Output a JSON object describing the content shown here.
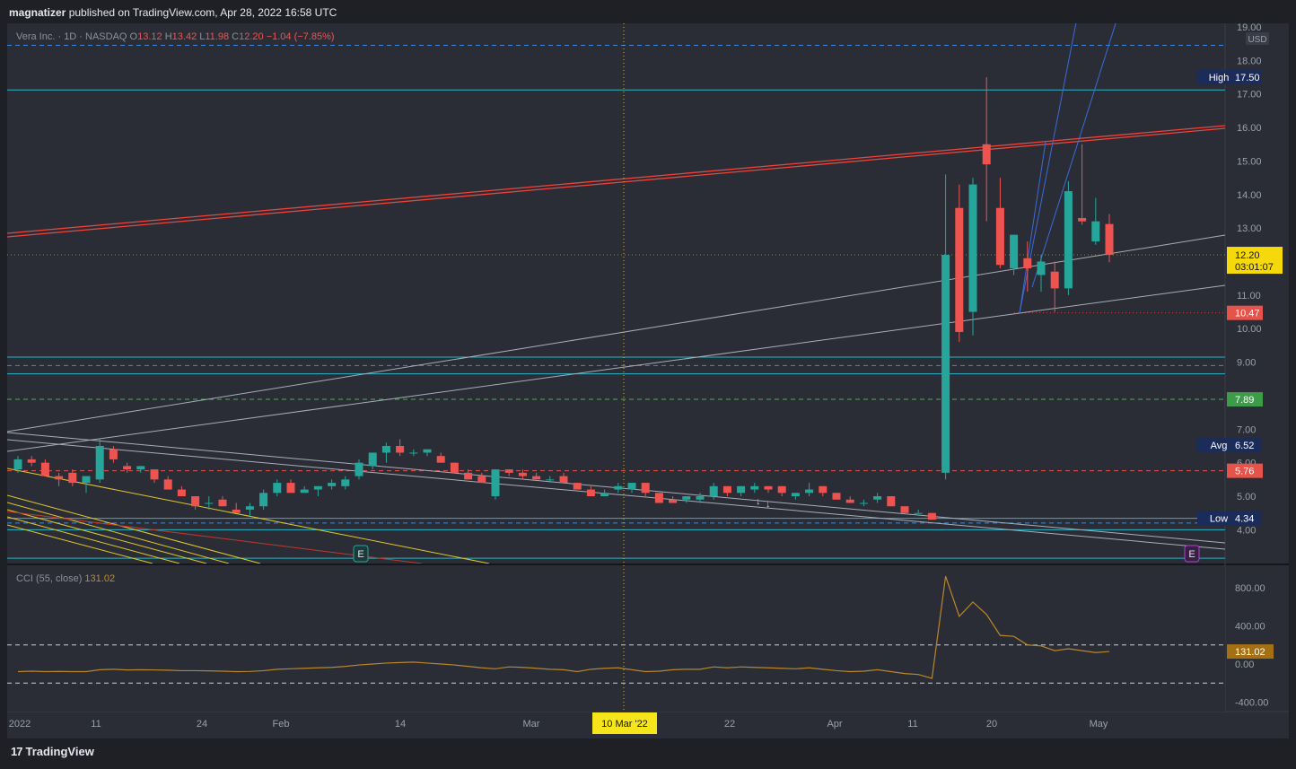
{
  "header": {
    "author": "magnatizer",
    "text": "published on TradingView.com, Apr 28, 2022 16:58 UTC"
  },
  "legend": {
    "symbol": "Vera Inc. · 1D · NASDAQ",
    "o_label": "O",
    "o": "13.12",
    "h_label": "H",
    "h": "13.42",
    "l_label": "L",
    "l": "11.98",
    "c_label": "C",
    "c": "12.20",
    "change": "−1.04 (−7.85%)"
  },
  "cci_legend": {
    "label": "CCI (55, close)",
    "value": "131.02"
  },
  "footer": {
    "brand": "TradingView"
  },
  "colors": {
    "up": "#26a69a",
    "down": "#ef5350",
    "red_line": "#f0433a",
    "blue_line": "#3b6bd6",
    "yellow_line": "#e3c82a",
    "teal_line": "#26c6da",
    "gray_line": "#a9adb8",
    "cci": "#b8862a"
  },
  "chart_data": {
    "type": "candlestick",
    "price_axis": {
      "ticks": [
        "19.00",
        "18.00",
        "17.00",
        "16.00",
        "15.00",
        "14.00",
        "13.00",
        "12.00",
        "11.00",
        "10.00",
        "9.00",
        "8.00",
        "7.00",
        "6.00",
        "5.00",
        "4.00"
      ],
      "currency": "USD",
      "range": [
        3.1,
        19.0
      ]
    },
    "time_axis": [
      "2022",
      "11",
      "24",
      "Feb",
      "14",
      "Mar",
      "22",
      "Apr",
      "11",
      "20",
      "May"
    ],
    "crosshair_date": "10 Mar '22",
    "price_labels": [
      {
        "text_left": "High",
        "value": "17.50",
        "kind": "navy"
      },
      {
        "value": "12.20",
        "sub": "03:01:07",
        "kind": "yellow"
      },
      {
        "value": "10.47",
        "kind": "red"
      },
      {
        "value": "7.89",
        "kind": "green"
      },
      {
        "text_left": "Avg",
        "value": "6.52",
        "kind": "navy"
      },
      {
        "value": "5.76",
        "kind": "red"
      },
      {
        "text_left": "Low",
        "value": "4.34",
        "kind": "navy"
      }
    ],
    "horizontal_levels": [
      {
        "price": 18.45,
        "style": "dashed",
        "color": "blue"
      },
      {
        "price": 17.12,
        "style": "solid",
        "color": "teal"
      },
      {
        "price": 9.15,
        "style": "solid",
        "color": "teal"
      },
      {
        "price": 8.9,
        "style": "dashed",
        "color": "blue"
      },
      {
        "price": 8.65,
        "style": "solid",
        "color": "teal"
      },
      {
        "price": 7.89,
        "style": "dashed",
        "color": "green"
      },
      {
        "price": 5.76,
        "style": "dashed",
        "color": "red"
      },
      {
        "price": 4.34,
        "style": "solid",
        "color": "teal"
      },
      {
        "price": 4.2,
        "style": "dashed",
        "color": "blue"
      },
      {
        "price": 4.0,
        "style": "solid",
        "color": "teal"
      },
      {
        "price": 3.15,
        "style": "solid",
        "color": "teal"
      }
    ],
    "candles": [
      {
        "o": 5.8,
        "h": 6.2,
        "l": 5.7,
        "c": 6.1
      },
      {
        "o": 6.1,
        "h": 6.2,
        "l": 5.9,
        "c": 6.0
      },
      {
        "o": 6.0,
        "h": 6.1,
        "l": 5.6,
        "c": 5.6
      },
      {
        "o": 5.6,
        "h": 5.7,
        "l": 5.3,
        "c": 5.5
      },
      {
        "o": 5.7,
        "h": 5.8,
        "l": 5.3,
        "c": 5.4
      },
      {
        "o": 5.4,
        "h": 5.6,
        "l": 5.1,
        "c": 5.6
      },
      {
        "o": 5.5,
        "h": 6.7,
        "l": 5.4,
        "c": 6.5
      },
      {
        "o": 6.4,
        "h": 6.5,
        "l": 6.0,
        "c": 6.1
      },
      {
        "o": 5.9,
        "h": 6.0,
        "l": 5.7,
        "c": 5.8
      },
      {
        "o": 5.8,
        "h": 5.9,
        "l": 5.7,
        "c": 5.9
      },
      {
        "o": 5.8,
        "h": 5.8,
        "l": 5.4,
        "c": 5.5
      },
      {
        "o": 5.5,
        "h": 5.6,
        "l": 5.2,
        "c": 5.2
      },
      {
        "o": 5.2,
        "h": 5.3,
        "l": 5.0,
        "c": 5.0
      },
      {
        "o": 5.0,
        "h": 5.0,
        "l": 4.6,
        "c": 4.7
      },
      {
        "o": 4.8,
        "h": 5.0,
        "l": 4.6,
        "c": 4.8
      },
      {
        "o": 4.9,
        "h": 5.0,
        "l": 4.7,
        "c": 4.7
      },
      {
        "o": 4.6,
        "h": 4.8,
        "l": 4.5,
        "c": 4.5
      },
      {
        "o": 4.6,
        "h": 4.8,
        "l": 4.4,
        "c": 4.7
      },
      {
        "o": 4.7,
        "h": 5.2,
        "l": 4.6,
        "c": 5.1
      },
      {
        "o": 5.1,
        "h": 5.5,
        "l": 5.0,
        "c": 5.4
      },
      {
        "o": 5.4,
        "h": 5.5,
        "l": 5.1,
        "c": 5.1
      },
      {
        "o": 5.1,
        "h": 5.3,
        "l": 5.1,
        "c": 5.2
      },
      {
        "o": 5.2,
        "h": 5.3,
        "l": 5.0,
        "c": 5.3
      },
      {
        "o": 5.3,
        "h": 5.5,
        "l": 5.2,
        "c": 5.4
      },
      {
        "o": 5.3,
        "h": 5.6,
        "l": 5.2,
        "c": 5.5
      },
      {
        "o": 5.6,
        "h": 6.1,
        "l": 5.5,
        "c": 6.0
      },
      {
        "o": 5.9,
        "h": 6.3,
        "l": 5.8,
        "c": 6.3
      },
      {
        "o": 6.3,
        "h": 6.6,
        "l": 6.0,
        "c": 6.5
      },
      {
        "o": 6.5,
        "h": 6.7,
        "l": 6.2,
        "c": 6.3
      },
      {
        "o": 6.3,
        "h": 6.4,
        "l": 6.2,
        "c": 6.3
      },
      {
        "o": 6.3,
        "h": 6.4,
        "l": 6.2,
        "c": 6.4
      },
      {
        "o": 6.2,
        "h": 6.3,
        "l": 6.0,
        "c": 6.0
      },
      {
        "o": 6.0,
        "h": 6.0,
        "l": 5.7,
        "c": 5.7
      },
      {
        "o": 5.7,
        "h": 5.8,
        "l": 5.5,
        "c": 5.5
      },
      {
        "o": 5.6,
        "h": 5.7,
        "l": 5.4,
        "c": 5.4
      },
      {
        "o": 5.0,
        "h": 5.8,
        "l": 4.9,
        "c": 5.8
      },
      {
        "o": 5.8,
        "h": 5.8,
        "l": 5.6,
        "c": 5.7
      },
      {
        "o": 5.7,
        "h": 5.8,
        "l": 5.5,
        "c": 5.6
      },
      {
        "o": 5.6,
        "h": 5.7,
        "l": 5.5,
        "c": 5.5
      },
      {
        "o": 5.5,
        "h": 5.6,
        "l": 5.4,
        "c": 5.5
      },
      {
        "o": 5.6,
        "h": 5.7,
        "l": 5.4,
        "c": 5.4
      },
      {
        "o": 5.4,
        "h": 5.4,
        "l": 5.2,
        "c": 5.2
      },
      {
        "o": 5.2,
        "h": 5.3,
        "l": 5.0,
        "c": 5.0
      },
      {
        "o": 5.0,
        "h": 5.2,
        "l": 5.0,
        "c": 5.1
      },
      {
        "o": 5.2,
        "h": 5.4,
        "l": 5.1,
        "c": 5.3
      },
      {
        "o": 5.2,
        "h": 5.4,
        "l": 5.1,
        "c": 5.4
      },
      {
        "o": 5.4,
        "h": 5.4,
        "l": 5.0,
        "c": 5.1
      },
      {
        "o": 5.1,
        "h": 5.1,
        "l": 4.8,
        "c": 4.8
      },
      {
        "o": 4.9,
        "h": 5.0,
        "l": 4.8,
        "c": 4.8
      },
      {
        "o": 4.9,
        "h": 5.0,
        "l": 4.8,
        "c": 5.0
      },
      {
        "o": 4.9,
        "h": 5.1,
        "l": 4.8,
        "c": 5.0
      },
      {
        "o": 5.0,
        "h": 5.4,
        "l": 4.9,
        "c": 5.3
      },
      {
        "o": 5.3,
        "h": 5.3,
        "l": 5.0,
        "c": 5.1
      },
      {
        "o": 5.1,
        "h": 5.3,
        "l": 5.0,
        "c": 5.3
      },
      {
        "o": 5.2,
        "h": 5.4,
        "l": 5.1,
        "c": 5.3
      },
      {
        "o": 5.3,
        "h": 5.3,
        "l": 5.1,
        "c": 5.2
      },
      {
        "o": 5.3,
        "h": 5.3,
        "l": 5.0,
        "c": 5.1
      },
      {
        "o": 5.0,
        "h": 5.1,
        "l": 4.9,
        "c": 5.1
      },
      {
        "o": 5.1,
        "h": 5.4,
        "l": 5.0,
        "c": 5.2
      },
      {
        "o": 5.3,
        "h": 5.3,
        "l": 5.0,
        "c": 5.1
      },
      {
        "o": 5.1,
        "h": 5.1,
        "l": 4.9,
        "c": 4.9
      },
      {
        "o": 4.9,
        "h": 5.0,
        "l": 4.8,
        "c": 4.8
      },
      {
        "o": 4.8,
        "h": 4.9,
        "l": 4.7,
        "c": 4.8
      },
      {
        "o": 4.9,
        "h": 5.1,
        "l": 4.8,
        "c": 5.0
      },
      {
        "o": 5.0,
        "h": 5.0,
        "l": 4.7,
        "c": 4.7
      },
      {
        "o": 4.7,
        "h": 4.7,
        "l": 4.5,
        "c": 4.5
      },
      {
        "o": 4.5,
        "h": 4.6,
        "l": 4.5,
        "c": 4.5
      },
      {
        "o": 4.5,
        "h": 4.5,
        "l": 4.3,
        "c": 4.3
      },
      {
        "o": 5.7,
        "h": 14.6,
        "l": 5.5,
        "c": 12.2
      },
      {
        "o": 13.6,
        "h": 14.3,
        "l": 9.6,
        "c": 9.9
      },
      {
        "o": 10.5,
        "h": 14.5,
        "l": 9.8,
        "c": 14.3
      },
      {
        "o": 15.5,
        "h": 17.5,
        "l": 13.2,
        "c": 14.9
      },
      {
        "o": 13.6,
        "h": 14.5,
        "l": 11.8,
        "c": 11.9
      },
      {
        "o": 11.8,
        "h": 12.8,
        "l": 11.6,
        "c": 12.8
      },
      {
        "o": 12.1,
        "h": 12.6,
        "l": 11.1,
        "c": 11.8
      },
      {
        "o": 11.6,
        "h": 12.2,
        "l": 11.1,
        "c": 12.0
      },
      {
        "o": 11.7,
        "h": 12.0,
        "l": 10.5,
        "c": 11.2
      },
      {
        "o": 11.2,
        "h": 14.4,
        "l": 11.0,
        "c": 14.1
      },
      {
        "o": 13.3,
        "h": 15.5,
        "l": 13.1,
        "c": 13.2
      },
      {
        "o": 12.6,
        "h": 13.9,
        "l": 12.5,
        "c": 13.2
      },
      {
        "o": 13.12,
        "h": 13.42,
        "l": 11.98,
        "c": 12.2
      }
    ],
    "cci": {
      "name": "CCI (55, close)",
      "last": 131.02,
      "ticks": [
        "800.00",
        "400.00",
        "0.00",
        "-400.00"
      ],
      "levels": [
        200,
        -200
      ],
      "values": [
        -80,
        -75,
        -80,
        -78,
        -80,
        -80,
        -60,
        -55,
        -62,
        -60,
        -62,
        -65,
        -70,
        -70,
        -72,
        -75,
        -80,
        -78,
        -70,
        -55,
        -50,
        -45,
        -40,
        -35,
        -25,
        -10,
        0,
        10,
        15,
        20,
        10,
        0,
        -10,
        -25,
        -40,
        -50,
        -30,
        -35,
        -45,
        -55,
        -60,
        -80,
        -55,
        -45,
        -40,
        -60,
        -80,
        -75,
        -60,
        -55,
        -55,
        -30,
        -40,
        -30,
        -35,
        -40,
        -45,
        -50,
        -40,
        -55,
        -70,
        -80,
        -75,
        -60,
        -80,
        -100,
        -110,
        -150,
        920,
        500,
        650,
        520,
        300,
        290,
        200,
        190,
        140,
        160,
        140,
        120,
        131
      ]
    }
  }
}
